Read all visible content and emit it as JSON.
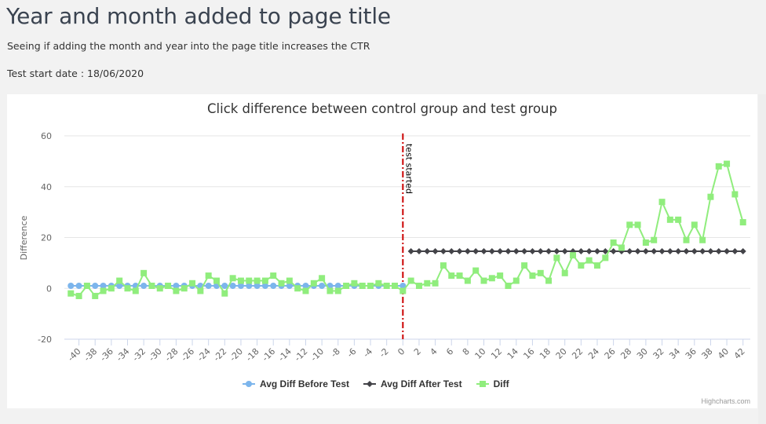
{
  "page": {
    "title": "Year and month added to page title",
    "description": "Seeing if adding the month and year into the page title increases the CTR",
    "start_date": "Test start date : 18/06/2020"
  },
  "chart_data": {
    "type": "line",
    "title": "Click difference between control group and test group",
    "xlabel": "",
    "ylabel": "Difference",
    "xlim": [
      -41,
      42
    ],
    "ylim": [
      -20,
      60
    ],
    "yticks": [
      -20,
      0,
      20,
      40,
      60
    ],
    "xticks": [
      -40,
      -38,
      -36,
      -34,
      -32,
      -30,
      -28,
      -26,
      -24,
      -22,
      -20,
      -18,
      -16,
      -14,
      -12,
      -10,
      -8,
      -6,
      -4,
      -2,
      0,
      2,
      4,
      6,
      8,
      10,
      12,
      14,
      16,
      18,
      20,
      22,
      24,
      26,
      28,
      30,
      32,
      34,
      36,
      38,
      40,
      42
    ],
    "grid": true,
    "legend_position": "bottom",
    "plot_line": {
      "x": 0,
      "label": "test started",
      "color": "#cc0000",
      "style": "dash-dot"
    },
    "series": [
      {
        "name": "Avg Diff Before Test",
        "color": "#7cb5ec",
        "marker": "circle",
        "x_start": -41,
        "values": [
          1,
          1,
          1,
          1,
          1,
          1,
          1,
          1,
          1,
          1,
          1,
          1,
          1,
          1,
          1,
          1,
          1,
          1,
          1,
          1,
          1,
          1,
          1,
          1,
          1,
          1,
          1,
          1,
          1,
          1,
          1,
          1,
          1,
          1,
          1,
          1,
          1,
          1,
          1,
          1,
          1,
          1
        ]
      },
      {
        "name": "Avg Diff After Test",
        "color": "#434348",
        "marker": "diamond",
        "x_start": 1,
        "values": [
          14.6,
          14.6,
          14.6,
          14.6,
          14.6,
          14.6,
          14.6,
          14.6,
          14.6,
          14.6,
          14.6,
          14.6,
          14.6,
          14.6,
          14.6,
          14.6,
          14.6,
          14.6,
          14.6,
          14.6,
          14.6,
          14.6,
          14.6,
          14.6,
          14.6,
          14.6,
          14.6,
          14.6,
          14.6,
          14.6,
          14.6,
          14.6,
          14.6,
          14.6,
          14.6,
          14.6,
          14.6,
          14.6,
          14.6,
          14.6,
          14.6,
          14.6
        ]
      },
      {
        "name": "Diff",
        "color": "#90ed7d",
        "marker": "square",
        "x_start": -41,
        "values": [
          -2,
          -3,
          1,
          -3,
          -1,
          0,
          3,
          0,
          -1,
          6,
          1,
          0,
          1,
          -1,
          0,
          2,
          -1,
          5,
          3,
          -2,
          4,
          3,
          3,
          3,
          3,
          5,
          2,
          3,
          0,
          -1,
          2,
          4,
          -1,
          -1,
          1,
          2,
          1,
          1,
          2,
          1,
          1,
          -1,
          3,
          1,
          2,
          2,
          9,
          5,
          5,
          3,
          7,
          3,
          4,
          5,
          1,
          3,
          9,
          5,
          6,
          3,
          12,
          6,
          13,
          9,
          11,
          9,
          12,
          18,
          16,
          25,
          25,
          18,
          19,
          34,
          27,
          27,
          19,
          25,
          19,
          36,
          48,
          49,
          37,
          26
        ]
      }
    ]
  },
  "legend": {
    "items": [
      {
        "label": "Avg Diff Before Test",
        "color": "#7cb5ec"
      },
      {
        "label": "Avg Diff After Test",
        "color": "#434348"
      },
      {
        "label": "Diff",
        "color": "#90ed7d"
      }
    ]
  },
  "credits": "Highcharts.com"
}
